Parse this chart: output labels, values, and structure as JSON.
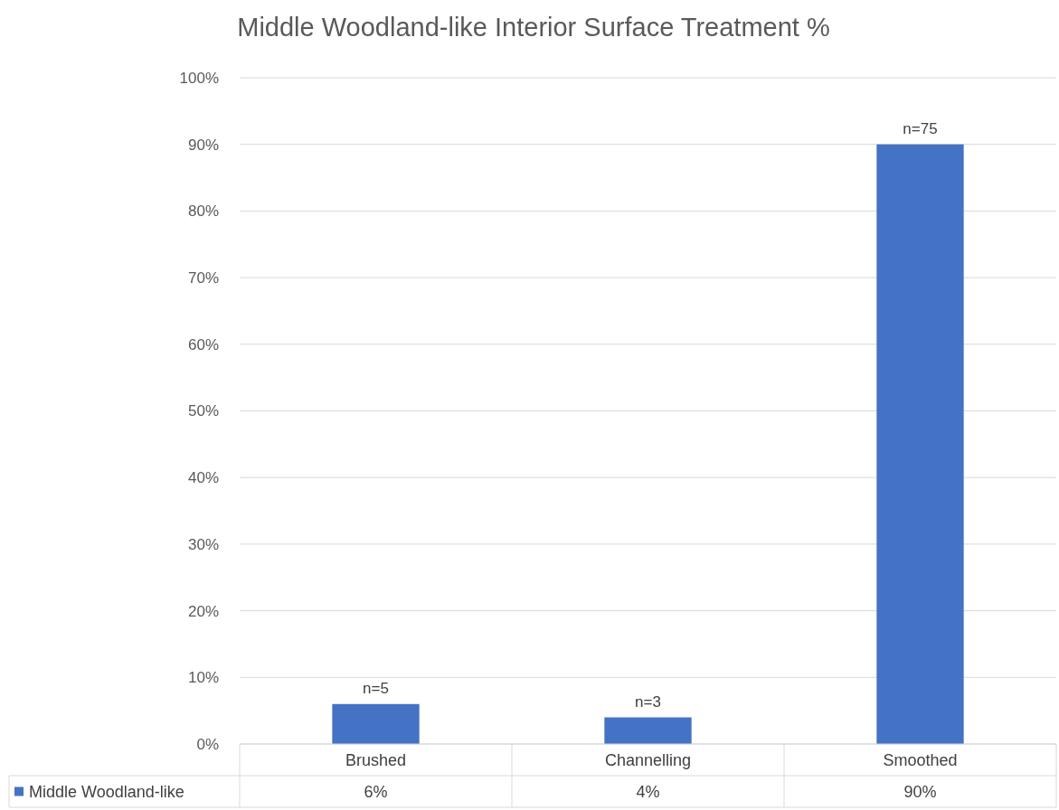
{
  "chart_data": {
    "type": "bar",
    "title": "Middle Woodland-like Interior Surface Treatment %",
    "categories": [
      "Brushed",
      "Channelling",
      "Smoothed"
    ],
    "series": [
      {
        "name": "Middle Woodland-like",
        "color": "#4472c4",
        "values": [
          6,
          4,
          90
        ],
        "value_labels": [
          "6%",
          "4%",
          "90%"
        ]
      }
    ],
    "ylim": [
      0,
      100
    ],
    "yticks": [
      {
        "value": 0,
        "label": "0%"
      },
      {
        "value": 10,
        "label": "10%"
      },
      {
        "value": 20,
        "label": "20%"
      },
      {
        "value": 30,
        "label": "30%"
      },
      {
        "value": 40,
        "label": "40%"
      },
      {
        "value": 50,
        "label": "50%"
      },
      {
        "value": 60,
        "label": "60%"
      },
      {
        "value": 70,
        "label": "70%"
      },
      {
        "value": 80,
        "label": "80%"
      },
      {
        "value": 90,
        "label": "90%"
      },
      {
        "value": 100,
        "label": "100%"
      }
    ],
    "annotations": [
      {
        "text": "n=5",
        "x": "Brushed",
        "y": 6
      },
      {
        "text": "n=3",
        "x": "Channelling",
        "y": 4
      },
      {
        "text": "n=75",
        "x": "Smoothed",
        "y": 90
      }
    ],
    "grid": "y",
    "legend": "bottom"
  }
}
